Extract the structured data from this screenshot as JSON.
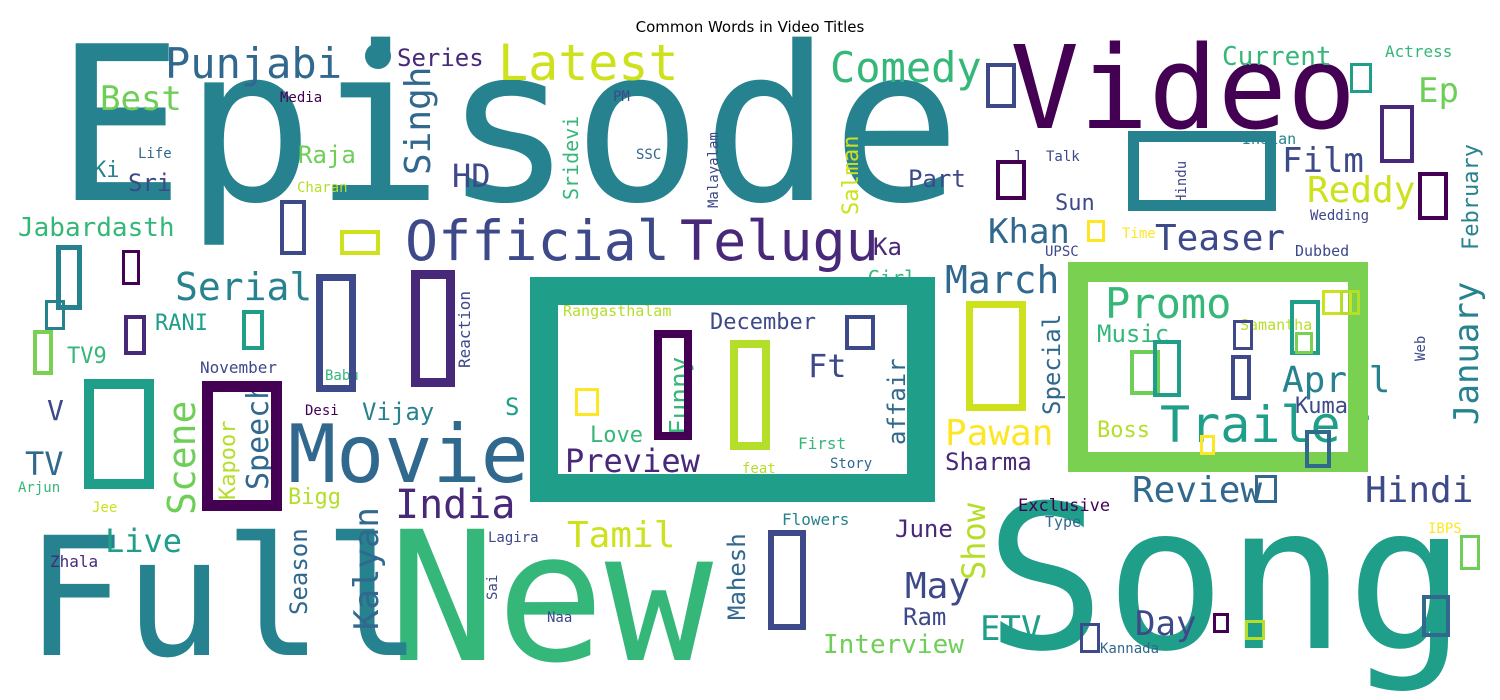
{
  "title": "Common Words in Video Titles",
  "chart_data": {
    "type": "wordcloud",
    "title": "Common Words in Video Titles",
    "colormap": "viridis",
    "background": "#ffffff",
    "words": [
      {
        "text": "Episode",
        "weight": 1.0,
        "color": "#26828e"
      },
      {
        "text": "Song",
        "weight": 0.9,
        "color": "#1f9e89"
      },
      {
        "text": "Video",
        "weight": 0.82,
        "color": "#440154"
      },
      {
        "text": "New",
        "weight": 0.82,
        "color": "#35b779"
      },
      {
        "text": "Full",
        "weight": 0.78,
        "color": "#26828e"
      },
      {
        "text": "Movie",
        "weight": 0.55,
        "color": "#31688e"
      },
      {
        "text": "Official",
        "weight": 0.42,
        "color": "#3e4989"
      },
      {
        "text": "Telugu",
        "weight": 0.42,
        "color": "#482878"
      },
      {
        "text": "Trailer",
        "weight": 0.4,
        "color": "#1f9e89"
      },
      {
        "text": "Latest",
        "weight": 0.36,
        "color": "#cde11d"
      },
      {
        "text": "Promo",
        "weight": 0.33,
        "color": "#35b779"
      },
      {
        "text": "Comedy",
        "weight": 0.32,
        "color": "#35b779"
      },
      {
        "text": "Punjabi",
        "weight": 0.32,
        "color": "#31688e"
      },
      {
        "text": "India",
        "weight": 0.32,
        "color": "#482878"
      },
      {
        "text": "March",
        "weight": 0.31,
        "color": "#31688e"
      },
      {
        "text": "Review",
        "weight": 0.3,
        "color": "#31688e"
      },
      {
        "text": "Hindi",
        "weight": 0.3,
        "color": "#3e4989"
      },
      {
        "text": "Serial",
        "weight": 0.3,
        "color": "#26828e"
      },
      {
        "text": "Teaser",
        "weight": 0.29,
        "color": "#3e4989"
      },
      {
        "text": "Singh",
        "weight": 0.29,
        "color": "#31688e"
      },
      {
        "text": "Scene",
        "weight": 0.29,
        "color": "#6ece58"
      },
      {
        "text": "Tamil",
        "weight": 0.29,
        "color": "#cde11d"
      },
      {
        "text": "Reddy",
        "weight": 0.28,
        "color": "#cde11d"
      },
      {
        "text": "Pawan",
        "weight": 0.28,
        "color": "#fde725"
      },
      {
        "text": "Preview",
        "weight": 0.27,
        "color": "#482878"
      },
      {
        "text": "May",
        "weight": 0.27,
        "color": "#3e4989"
      },
      {
        "text": "April",
        "weight": 0.27,
        "color": "#26828e"
      },
      {
        "text": "Kalyan",
        "weight": 0.27,
        "color": "#31688e"
      },
      {
        "text": "January",
        "weight": 0.27,
        "color": "#26828e"
      },
      {
        "text": "Film",
        "weight": 0.27,
        "color": "#3e4989"
      },
      {
        "text": "Best",
        "weight": 0.26,
        "color": "#6ece58"
      },
      {
        "text": "Live",
        "weight": 0.26,
        "color": "#1f9e89"
      },
      {
        "text": "HD",
        "weight": 0.26,
        "color": "#3e4989"
      },
      {
        "text": "Khan",
        "weight": 0.26,
        "color": "#31688e"
      },
      {
        "text": "Day",
        "weight": 0.26,
        "color": "#3e4989"
      },
      {
        "text": "ETV",
        "weight": 0.26,
        "color": "#1f9e89"
      },
      {
        "text": "Show",
        "weight": 0.26,
        "color": "#b5de2b"
      },
      {
        "text": "Ep",
        "weight": 0.26,
        "color": "#6ece58"
      },
      {
        "text": "Speech",
        "weight": 0.25,
        "color": "#31688e"
      },
      {
        "text": "TV",
        "weight": 0.25,
        "color": "#31688e"
      },
      {
        "text": "Ft",
        "weight": 0.25,
        "color": "#3e4989"
      },
      {
        "text": "Funny",
        "weight": 0.24,
        "color": "#35b779"
      },
      {
        "text": "Interview",
        "weight": 0.22,
        "color": "#6ece58"
      },
      {
        "text": "Mahesh",
        "weight": 0.22,
        "color": "#31688e"
      },
      {
        "text": "Kapoor",
        "weight": 0.22,
        "color": "#b5de2b"
      },
      {
        "text": "Season",
        "weight": 0.22,
        "color": "#31688e"
      },
      {
        "text": "Special",
        "weight": 0.22,
        "color": "#31688e"
      },
      {
        "text": "Current",
        "weight": 0.22,
        "color": "#35b779"
      },
      {
        "text": "February",
        "weight": 0.22,
        "color": "#26828e"
      },
      {
        "text": "Salman",
        "weight": 0.2,
        "color": "#cde11d"
      },
      {
        "text": "Jabardasth",
        "weight": 0.2,
        "color": "#35b779"
      },
      {
        "text": "December",
        "weight": 0.2,
        "color": "#3e4989"
      },
      {
        "text": "Raja",
        "weight": 0.2,
        "color": "#6ece58"
      },
      {
        "text": "Series",
        "weight": 0.2,
        "color": "#482878"
      },
      {
        "text": "Music",
        "weight": 0.2,
        "color": "#35b779"
      },
      {
        "text": "Sharma",
        "weight": 0.2,
        "color": "#482878"
      },
      {
        "text": "Kumar",
        "weight": 0.2,
        "color": "#3e4989"
      },
      {
        "text": "affair",
        "weight": 0.2,
        "color": "#31688e"
      },
      {
        "text": "Vijay",
        "weight": 0.2,
        "color": "#26828e"
      },
      {
        "text": "Ram",
        "weight": 0.2,
        "color": "#3e4989"
      },
      {
        "text": "Boss",
        "weight": 0.2,
        "color": "#b5de2b"
      },
      {
        "text": "Love",
        "weight": 0.2,
        "color": "#35b779"
      },
      {
        "text": "June",
        "weight": 0.2,
        "color": "#482878"
      },
      {
        "text": "Sun",
        "weight": 0.2,
        "color": "#3e4989"
      },
      {
        "text": "Sridevi",
        "weight": 0.19,
        "color": "#35b779"
      },
      {
        "text": "Sri",
        "weight": 0.19,
        "color": "#3e4989"
      },
      {
        "text": "Ki",
        "weight": 0.19,
        "color": "#26828e"
      },
      {
        "text": "Part",
        "weight": 0.19,
        "color": "#3e4989"
      },
      {
        "text": "Ka",
        "weight": 0.19,
        "color": "#482878"
      },
      {
        "text": "V",
        "weight": 0.19,
        "color": "#3e4989"
      },
      {
        "text": "S",
        "weight": 0.19,
        "color": "#1f9e89"
      },
      {
        "text": "Girl",
        "weight": 0.17,
        "color": "#35b779"
      },
      {
        "text": "TV9",
        "weight": 0.17,
        "color": "#35b779"
      },
      {
        "text": "RANI",
        "weight": 0.17,
        "color": "#1f9e89"
      },
      {
        "text": "Bigg",
        "weight": 0.17,
        "color": "#b5de2b"
      },
      {
        "text": "November",
        "weight": 0.14,
        "color": "#3e4989"
      },
      {
        "text": "Reaction",
        "weight": 0.14,
        "color": "#3e4989"
      },
      {
        "text": "Exclusive",
        "weight": 0.14,
        "color": "#440154"
      },
      {
        "text": "Rangasthalam",
        "weight": 0.13,
        "color": "#b5de2b"
      },
      {
        "text": "Samantha",
        "weight": 0.13,
        "color": "#b5de2b"
      },
      {
        "text": "Actress",
        "weight": 0.13,
        "color": "#35b779"
      },
      {
        "text": "Indian",
        "weight": 0.13,
        "color": "#26828e"
      },
      {
        "text": "Flowers",
        "weight": 0.13,
        "color": "#26828e"
      },
      {
        "text": "Dubbed",
        "weight": 0.13,
        "color": "#3e4989"
      },
      {
        "text": "Type",
        "weight": 0.13,
        "color": "#31688e"
      },
      {
        "text": "Wedding",
        "weight": 0.13,
        "color": "#3e4989"
      },
      {
        "text": "Malayalam",
        "weight": 0.12,
        "color": "#3e4989"
      },
      {
        "text": "Kannada",
        "weight": 0.12,
        "color": "#31688e"
      },
      {
        "text": "Media",
        "weight": 0.12,
        "color": "#440154"
      },
      {
        "text": "Babu",
        "weight": 0.12,
        "color": "#35b779"
      },
      {
        "text": "Desi",
        "weight": 0.12,
        "color": "#440154"
      },
      {
        "text": "Charan",
        "weight": 0.12,
        "color": "#b5de2b"
      },
      {
        "text": "Life",
        "weight": 0.12,
        "color": "#31688e"
      },
      {
        "text": "SSC",
        "weight": 0.12,
        "color": "#31688e"
      },
      {
        "text": "First",
        "weight": 0.12,
        "color": "#35b779"
      },
      {
        "text": "feat",
        "weight": 0.12,
        "color": "#b5de2b"
      },
      {
        "text": "Story",
        "weight": 0.12,
        "color": "#31688e"
      },
      {
        "text": "Lagira",
        "weight": 0.12,
        "color": "#3e4989"
      },
      {
        "text": "Naa",
        "weight": 0.12,
        "color": "#3e4989"
      },
      {
        "text": "Zhala",
        "weight": 0.12,
        "color": "#482878"
      },
      {
        "text": "Arjun",
        "weight": 0.12,
        "color": "#35b779"
      },
      {
        "text": "Jee",
        "weight": 0.12,
        "color": "#cde11d"
      },
      {
        "text": "Sai",
        "weight": 0.11,
        "color": "#3e4989"
      },
      {
        "text": "Talk",
        "weight": 0.12,
        "color": "#3e4989"
      },
      {
        "text": "Time",
        "weight": 0.12,
        "color": "#fde725"
      },
      {
        "text": "UPSC",
        "weight": 0.12,
        "color": "#3e4989"
      },
      {
        "text": "PM",
        "weight": 0.12,
        "color": "#3e4989"
      },
      {
        "text": "IBPS",
        "weight": 0.12,
        "color": "#fde725"
      },
      {
        "text": "Hindu",
        "weight": 0.11,
        "color": "#3e4989"
      },
      {
        "text": "Web",
        "weight": 0.11,
        "color": "#3e4989"
      },
      {
        "text": "l",
        "weight": 0.11,
        "color": "#3e4989"
      }
    ],
    "glyph_boxes": [
      {
        "color": "#1f9e89",
        "weight": 1.0
      },
      {
        "color": "#7ad151",
        "weight": 0.9
      },
      {
        "color": "#26828e",
        "weight": 0.5
      },
      {
        "color": "#482878",
        "weight": 0.5
      },
      {
        "color": "#440154",
        "weight": 0.45
      },
      {
        "color": "#3e4989",
        "weight": 0.45
      },
      {
        "color": "#cde11d",
        "weight": 0.4
      },
      {
        "color": "#1f9e89",
        "weight": 0.4
      },
      {
        "color": "#3e4989",
        "weight": 0.3
      },
      {
        "color": "#440154",
        "weight": 0.3
      },
      {
        "color": "#b5de2b",
        "weight": 0.3
      },
      {
        "color": "#31688e",
        "weight": 0.3
      },
      {
        "color": "#fde725",
        "weight": 0.3
      },
      {
        "color": "#6ece58",
        "weight": 0.25
      },
      {
        "color": "#3e4989",
        "weight": 0.25
      }
    ]
  }
}
